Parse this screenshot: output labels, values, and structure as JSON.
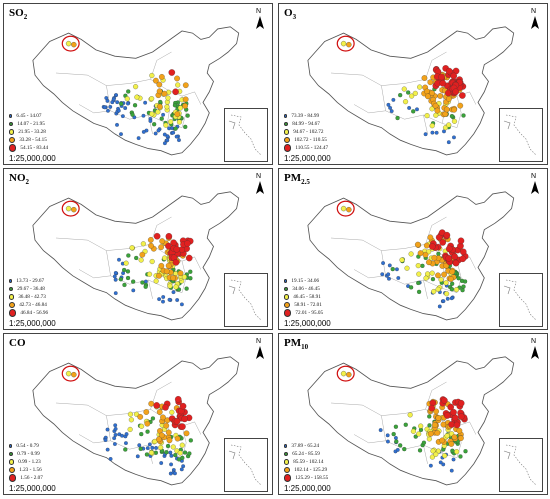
{
  "colors": {
    "blue": "#2f6fd0",
    "green": "#3aa33a",
    "yellow": "#f2f04a",
    "orange": "#f2a21a",
    "red": "#e02020",
    "outline": "#555555"
  },
  "panels": [
    {
      "id": "so2",
      "title_main": "SO",
      "title_sub": "2",
      "scale": "1:25,000,000",
      "legend": [
        "6.45 - 14.07",
        "14.07 - 21.95",
        "21.95 - 33.28",
        "33.28 - 54.15",
        "54.15 - 83.44"
      ],
      "dots": [
        {
          "c": "blue",
          "n": 55
        },
        {
          "c": "green",
          "n": 35
        },
        {
          "c": "yellow",
          "n": 30
        },
        {
          "c": "orange",
          "n": 12
        },
        {
          "c": "red",
          "n": 2
        }
      ]
    },
    {
      "id": "o3",
      "title_main": "O",
      "title_sub": "3",
      "scale": "1:25,000,000",
      "legend": [
        "73.39 - 84.99",
        "84.99 - 94.67",
        "94.67 - 102.72",
        "102.72 - 110.55",
        "110.55 - 124.47"
      ],
      "dots": [
        {
          "c": "blue",
          "n": 12
        },
        {
          "c": "green",
          "n": 12
        },
        {
          "c": "yellow",
          "n": 20
        },
        {
          "c": "orange",
          "n": 45
        },
        {
          "c": "red",
          "n": 45
        }
      ]
    },
    {
      "id": "no2",
      "title_main": "NO",
      "title_sub": "2",
      "scale": "1:25,000,000",
      "legend": [
        "13.73 - 29.67",
        "29.67 - 36.48",
        "36.48 - 42.73",
        "42.73 - 46.84",
        "46.84 - 56.96"
      ],
      "dots": [
        {
          "c": "blue",
          "n": 20
        },
        {
          "c": "green",
          "n": 30
        },
        {
          "c": "yellow",
          "n": 35
        },
        {
          "c": "orange",
          "n": 30
        },
        {
          "c": "red",
          "n": 25
        }
      ]
    },
    {
      "id": "pm25",
      "title_main": "PM",
      "title_sub": "2.5",
      "scale": "1:25,000,000",
      "legend": [
        "19.15 - 34.06",
        "34.06 - 46.45",
        "46.45 - 58.91",
        "58.91 - 72.01",
        "72.01 - 95.05"
      ],
      "dots": [
        {
          "c": "blue",
          "n": 20
        },
        {
          "c": "green",
          "n": 35
        },
        {
          "c": "yellow",
          "n": 25
        },
        {
          "c": "orange",
          "n": 35
        },
        {
          "c": "red",
          "n": 30
        }
      ]
    },
    {
      "id": "co",
      "title_main": "CO",
      "title_sub": "",
      "scale": "1:25,000,000",
      "legend": [
        "0.54 - 0.79",
        "0.79 - 0.99",
        "0.99 - 1.23",
        "1.23 - 1.56",
        "1.56 - 2.07"
      ],
      "dots": [
        {
          "c": "blue",
          "n": 40
        },
        {
          "c": "green",
          "n": 30
        },
        {
          "c": "yellow",
          "n": 25
        },
        {
          "c": "orange",
          "n": 25
        },
        {
          "c": "red",
          "n": 20
        }
      ]
    },
    {
      "id": "pm10",
      "title_main": "PM",
      "title_sub": "10",
      "scale": "1:25,000,000",
      "legend": [
        "37.89 - 65.24",
        "65.24 - 85.59",
        "85.59 - 102.14",
        "102.14 - 125.29",
        "125.29 - 158.55"
      ],
      "dots": [
        {
          "c": "blue",
          "n": 15
        },
        {
          "c": "green",
          "n": 35
        },
        {
          "c": "yellow",
          "n": 30
        },
        {
          "c": "orange",
          "n": 40
        },
        {
          "c": "red",
          "n": 25
        }
      ]
    }
  ],
  "north_label": "N"
}
